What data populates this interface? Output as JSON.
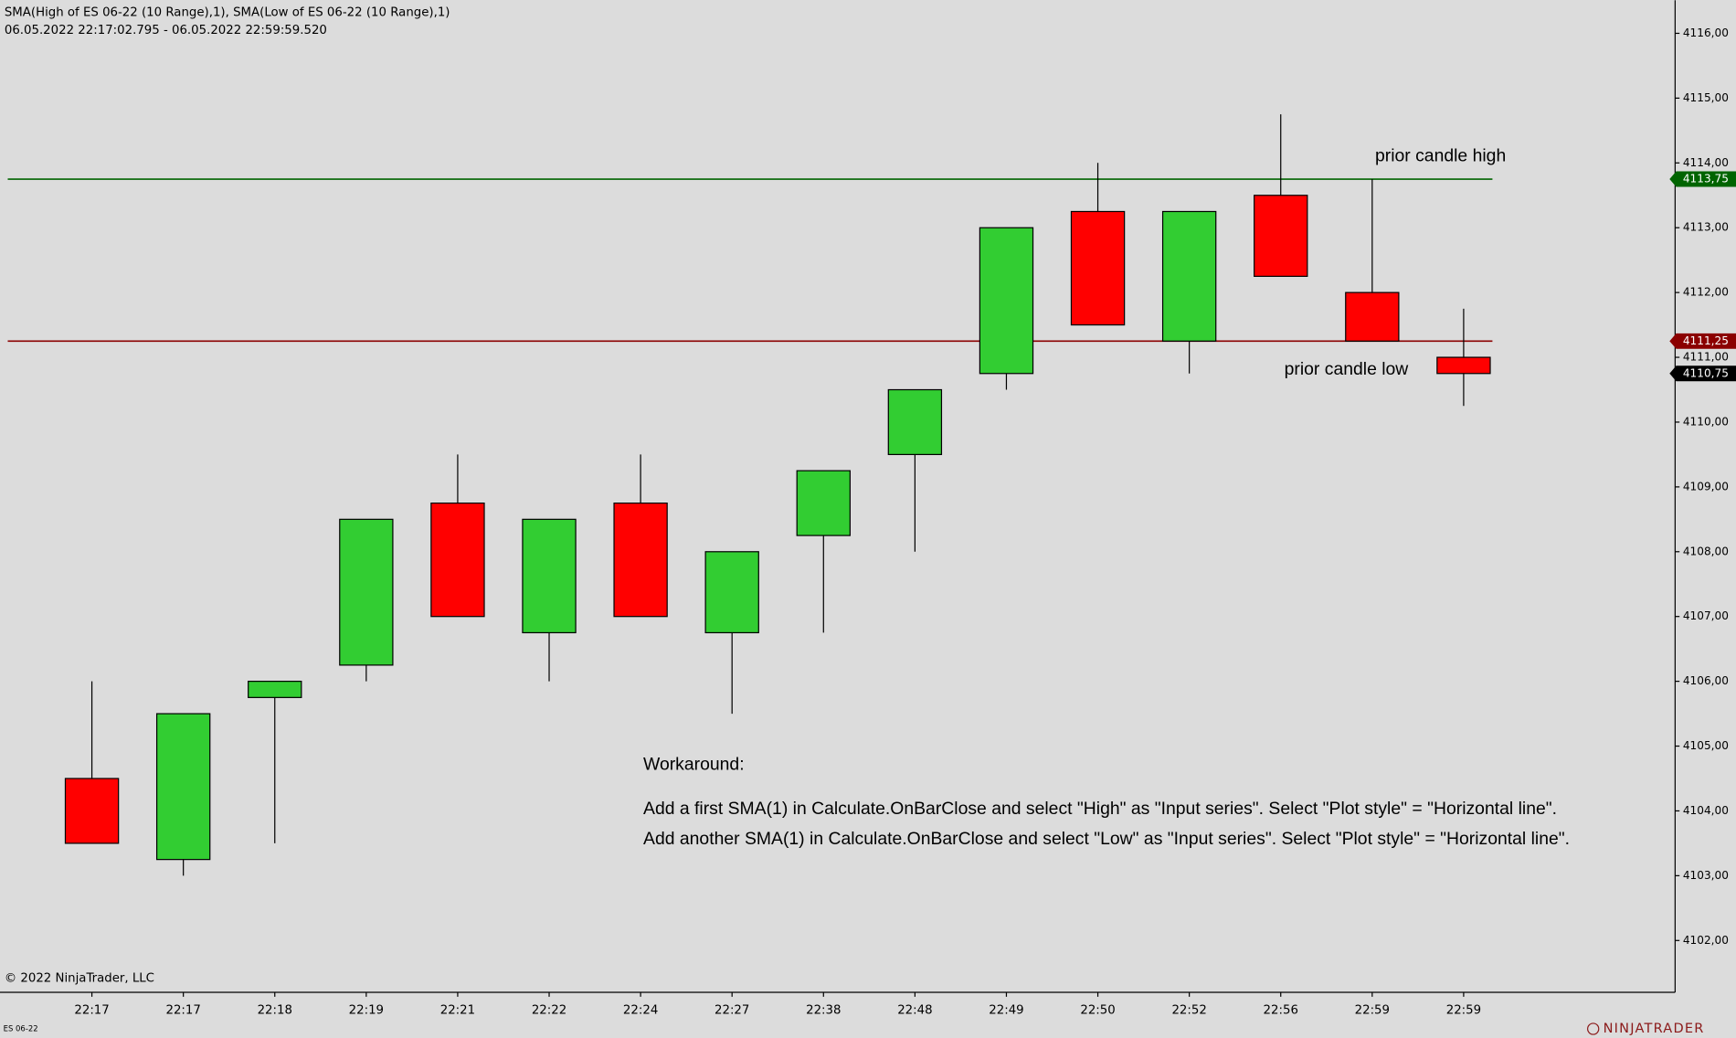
{
  "header": {
    "title": "SMA(High of ES 06-22 (10 Range),1), SMA(Low of ES 06-22 (10 Range),1)",
    "date_range": "06.05.2022 22:17:02.795 - 06.05.2022 22:59:59.520",
    "copyright": "© 2022 NinjaTrader, LLC",
    "instrument": "ES 06-22",
    "logo": "NINJATRADER"
  },
  "chart_data": {
    "type": "candlestick",
    "categories": [
      "22:17",
      "22:17",
      "22:18",
      "22:19",
      "22:21",
      "22:22",
      "22:24",
      "22:27",
      "22:38",
      "22:48",
      "22:49",
      "22:50",
      "22:52",
      "22:56",
      "22:59",
      "22:59"
    ],
    "open": [
      4104.5,
      4103.25,
      4105.75,
      4106.25,
      4108.75,
      4106.75,
      4108.75,
      4106.75,
      4108.25,
      4109.5,
      4110.75,
      4113.25,
      4111.25,
      4113.5,
      4112,
      4111
    ],
    "high": [
      4106,
      4105.5,
      4106,
      4108.5,
      4109.5,
      4108.5,
      4109.5,
      4108,
      4109.25,
      4110.5,
      4113,
      4114,
      4113.25,
      4114.75,
      4113.75,
      4111.75
    ],
    "low": [
      4103.5,
      4103,
      4103.5,
      4106,
      4107,
      4106,
      4107,
      4105.5,
      4106.75,
      4108,
      4110.5,
      4111.5,
      4110.75,
      4112.25,
      4111.25,
      4110.25
    ],
    "close": [
      4103.5,
      4105.5,
      4106,
      4108.5,
      4107,
      4108.5,
      4107,
      4108,
      4109.25,
      4110.5,
      4113,
      4111.5,
      4113.25,
      4112.25,
      4111.25,
      4110.75
    ],
    "up_color": "#32cd32",
    "down_color": "#ff0000",
    "ylim": [
      4101.2,
      4116.51
    ],
    "yticks": [
      {
        "value": 4102,
        "label": "4102,00"
      },
      {
        "value": 4103,
        "label": "4103,00"
      },
      {
        "value": 4104,
        "label": "4104,00"
      },
      {
        "value": 4105,
        "label": "4105,00"
      },
      {
        "value": 4106,
        "label": "4106,00"
      },
      {
        "value": 4107,
        "label": "4107,00"
      },
      {
        "value": 4108,
        "label": "4108,00"
      },
      {
        "value": 4109,
        "label": "4109,00"
      },
      {
        "value": 4110,
        "label": "4110,00"
      },
      {
        "value": 4111,
        "label": "4111,00"
      },
      {
        "value": 4112,
        "label": "4112,00"
      },
      {
        "value": 4113,
        "label": "4113,00"
      },
      {
        "value": 4114,
        "label": "4114,00"
      },
      {
        "value": 4115,
        "label": "4115,00"
      },
      {
        "value": 4116,
        "label": "4116,00"
      }
    ],
    "hlines": [
      {
        "value": 4113.75,
        "label": "4113,75",
        "color": "#006400"
      },
      {
        "value": 4111.25,
        "label": "4111,25",
        "color": "#8b0000"
      }
    ],
    "last_price": {
      "value": 4110.75,
      "label": "4110,75",
      "color": "#000000"
    },
    "annotations": [
      "prior candle high",
      "prior candle low"
    ],
    "note": {
      "heading": "Workaround:",
      "lines": [
        "Add a first SMA(1) in Calculate.OnBarClose and select \"High\" as \"Input series\". Select \"Plot style\" = \"Horizontal line\".",
        "Add another SMA(1) in Calculate.OnBarClose and select \"Low\" as \"Input series\". Select \"Plot style\" = \"Horizontal line\"."
      ]
    }
  }
}
